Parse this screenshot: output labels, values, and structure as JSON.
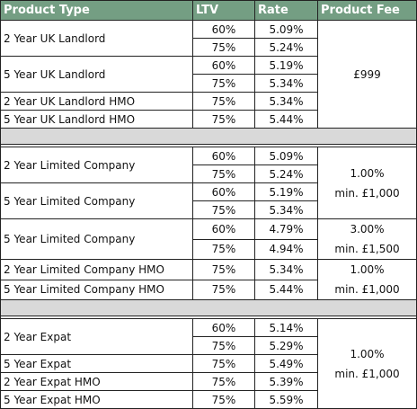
{
  "header": [
    "Product Type",
    "LTV",
    "Rate",
    "Product Fee"
  ],
  "sections": [
    {
      "groups": [
        {
          "fee": {
            "lines": [
              "£999"
            ]
          },
          "products": [
            {
              "name": "2 Year UK Landlord",
              "options": [
                {
                  "ltv": "60%",
                  "rate": "5.09%"
                },
                {
                  "ltv": "75%",
                  "rate": "5.24%"
                }
              ]
            },
            {
              "name": "5 Year UK Landlord",
              "options": [
                {
                  "ltv": "60%",
                  "rate": "5.19%"
                },
                {
                  "ltv": "75%",
                  "rate": "5.34%"
                }
              ]
            },
            {
              "name": "2 Year UK Landlord HMO",
              "options": [
                {
                  "ltv": "75%",
                  "rate": "5.34%"
                }
              ]
            },
            {
              "name": "5 Year UK Landlord HMO",
              "options": [
                {
                  "ltv": "75%",
                  "rate": "5.44%"
                }
              ]
            }
          ]
        }
      ]
    },
    {
      "groups": [
        {
          "fee": {
            "lines": [
              "1.00%",
              "min. £1,000"
            ]
          },
          "products": [
            {
              "name": "2 Year Limited Company",
              "options": [
                {
                  "ltv": "60%",
                  "rate": "5.09%"
                },
                {
                  "ltv": "75%",
                  "rate": "5.24%"
                }
              ]
            },
            {
              "name": "5 Year Limited Company",
              "options": [
                {
                  "ltv": "60%",
                  "rate": "5.19%"
                },
                {
                  "ltv": "75%",
                  "rate": "5.34%"
                }
              ]
            }
          ]
        },
        {
          "fee": {
            "lines": [
              "3.00%",
              "min. £1,500"
            ]
          },
          "products": [
            {
              "name": "5 Year Limited Company",
              "options": [
                {
                  "ltv": "60%",
                  "rate": "4.79%"
                },
                {
                  "ltv": "75%",
                  "rate": "4.94%"
                }
              ]
            }
          ]
        },
        {
          "fee": {
            "lines": [
              "1.00%",
              "min. £1,000"
            ]
          },
          "products": [
            {
              "name": "2 Year Limited Company HMO",
              "options": [
                {
                  "ltv": "75%",
                  "rate": "5.34%"
                }
              ]
            },
            {
              "name": "5 Year Limited Company HMO",
              "options": [
                {
                  "ltv": "75%",
                  "rate": "5.44%"
                }
              ]
            }
          ]
        }
      ]
    },
    {
      "groups": [
        {
          "fee": {
            "lines": [
              "1.00%",
              "min. £1,000"
            ]
          },
          "products": [
            {
              "name": "2 Year Expat",
              "options": [
                {
                  "ltv": "60%",
                  "rate": "5.14%"
                },
                {
                  "ltv": "75%",
                  "rate": "5.29%"
                }
              ]
            },
            {
              "name": "5 Year Expat",
              "options": [
                {
                  "ltv": "75%",
                  "rate": "5.49%"
                }
              ]
            },
            {
              "name": "2 Year Expat HMO",
              "options": [
                {
                  "ltv": "75%",
                  "rate": "5.39%"
                }
              ]
            },
            {
              "name": "5 Year Expat HMO",
              "options": [
                {
                  "ltv": "75%",
                  "rate": "5.59%"
                }
              ]
            }
          ]
        }
      ]
    }
  ]
}
